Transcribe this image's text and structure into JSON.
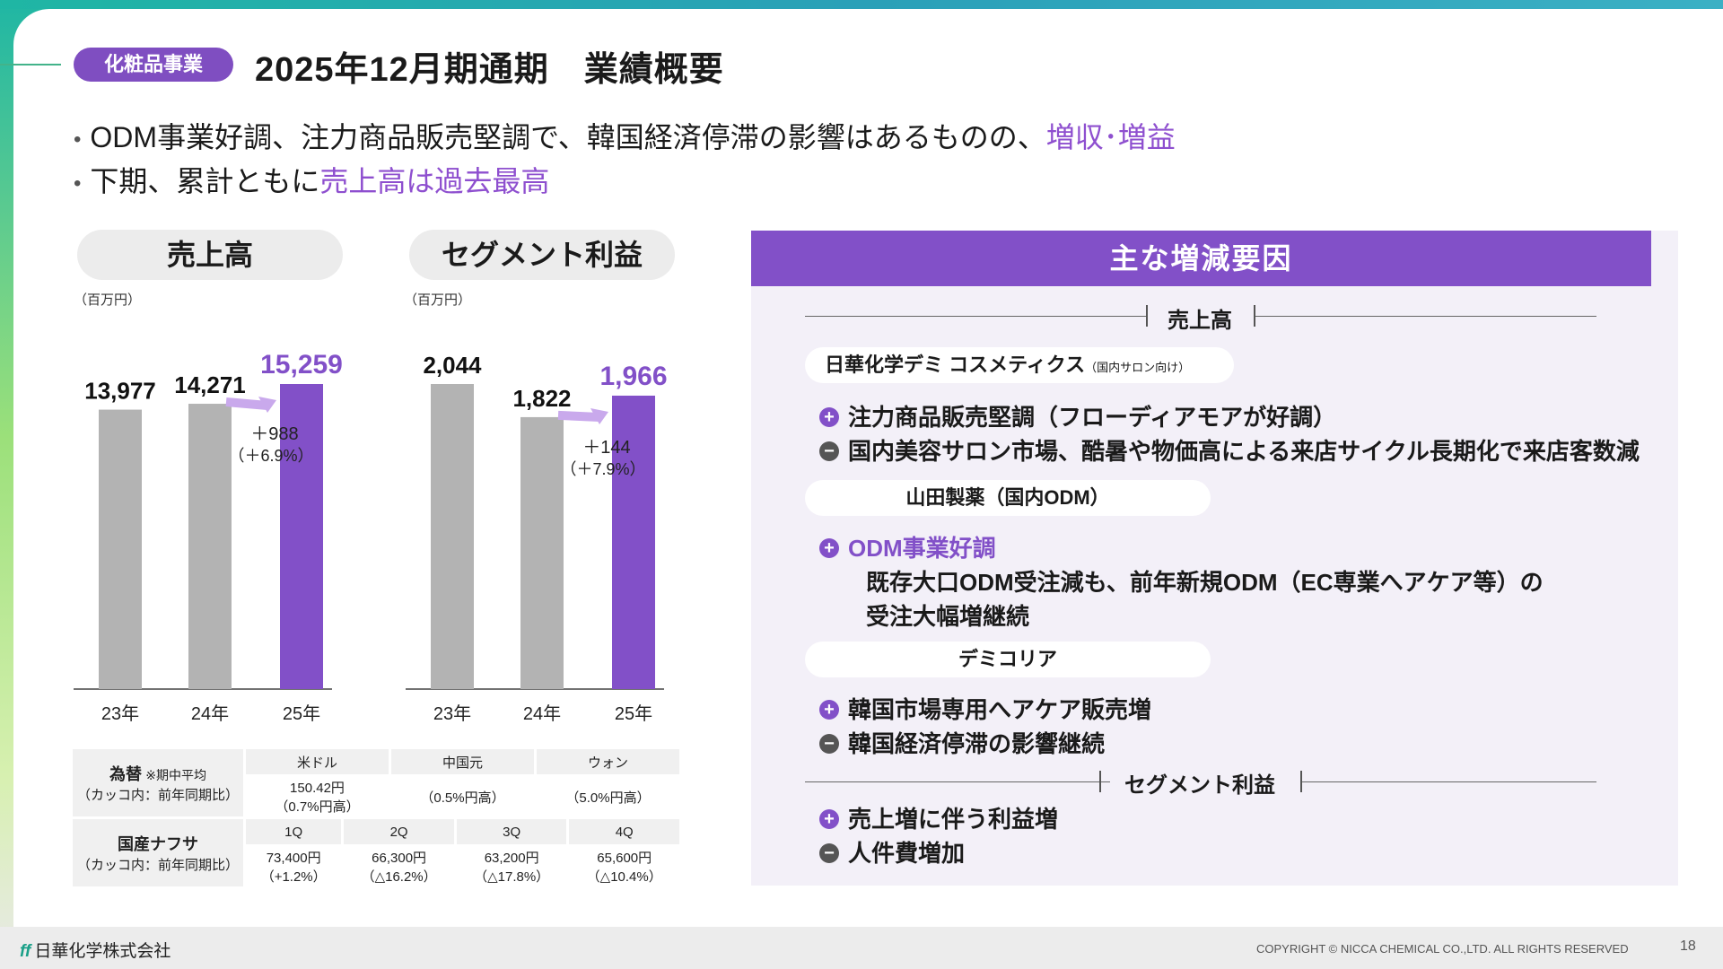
{
  "header": {
    "tag": "化粧品事業",
    "title": "2025年12月期通期　業績概要"
  },
  "bullets": [
    {
      "text": "ODM事業好調、注力商品販売堅調で、韓国経済停滞の影響はあるものの、",
      "highlight": "増収･増益"
    },
    {
      "text": "下期、累計ともに",
      "highlight": "売上高は過去最高"
    }
  ],
  "chart_data": [
    {
      "type": "bar",
      "title": "売上高",
      "unit": "（百万円）",
      "categories": [
        "23年",
        "24年",
        "25年"
      ],
      "values": [
        13977,
        14271,
        15259
      ],
      "value_labels": [
        "13,977",
        "14,271",
        "15,259"
      ],
      "highlight_color": "#8250c8",
      "base_color": "#b3b3b3",
      "change": "＋988",
      "change_pct": "（＋6.9%）"
    },
    {
      "type": "bar",
      "title": "セグメント利益",
      "unit": "（百万円）",
      "categories": [
        "23年",
        "24年",
        "25年"
      ],
      "values": [
        2044,
        1822,
        1966
      ],
      "value_labels": [
        "2,044",
        "1,822",
        "1,966"
      ],
      "highlight_color": "#8250c8",
      "base_color": "#b3b3b3",
      "change": "＋144",
      "change_pct": "（＋7.9%）"
    }
  ],
  "fx_table": {
    "label": "為替",
    "note": "※期中平均",
    "sub": "（カッコ内：前年同期比）",
    "headers": [
      "米ドル",
      "中国元",
      "ウォン"
    ],
    "usd": [
      "150.42円",
      "（0.7%円高）"
    ],
    "cny": "（0.5%円高）",
    "krw": "（5.0%円高）"
  },
  "naphtha_table": {
    "label": "国産ナフサ",
    "sub": "（カッコ内：前年同期比）",
    "headers": [
      "1Q",
      "2Q",
      "3Q",
      "4Q"
    ],
    "values": [
      "73,400円",
      "66,300円",
      "63,200円",
      "65,600円"
    ],
    "changes": [
      "（+1.2%）",
      "（△16.2%）",
      "（△17.8%）",
      "（△10.4%）"
    ]
  },
  "factors": {
    "title": "主な増減要因",
    "sales_label": "売上高",
    "profit_label": "セグメント利益",
    "groups": [
      {
        "company": "日華化学デミ コスメティクス",
        "company_note": "（国内サロン向け）",
        "items": [
          {
            "sign": "+",
            "text": "注力商品販売堅調（フローディアモアが好調）"
          },
          {
            "sign": "-",
            "text": "国内美容サロン市場、酷暑や物価高による来店サイクル長期化で来店客数減"
          }
        ]
      },
      {
        "company": "山田製薬（国内ODM）",
        "items": [
          {
            "sign": "+",
            "text": "ODM事業好調"
          }
        ],
        "detail": [
          "既存大口ODM受注減も、前年新規ODM（EC専業へアケア等）の",
          "受注大幅増継続"
        ]
      },
      {
        "company": "デミコリア",
        "items": [
          {
            "sign": "+",
            "text": "韓国市場専用へアケア販売増"
          },
          {
            "sign": "-",
            "text": "韓国経済停滞の影響継続"
          }
        ]
      }
    ],
    "profit_items": [
      {
        "sign": "+",
        "text": "売上増に伴う利益増"
      },
      {
        "sign": "-",
        "text": "人件費増加"
      }
    ]
  },
  "footer": {
    "company": "日華化学株式会社",
    "copyright": "COPYRIGHT © NICCA CHEMICAL CO.,LTD. ALL RIGHTS RESERVED",
    "page": "18"
  }
}
